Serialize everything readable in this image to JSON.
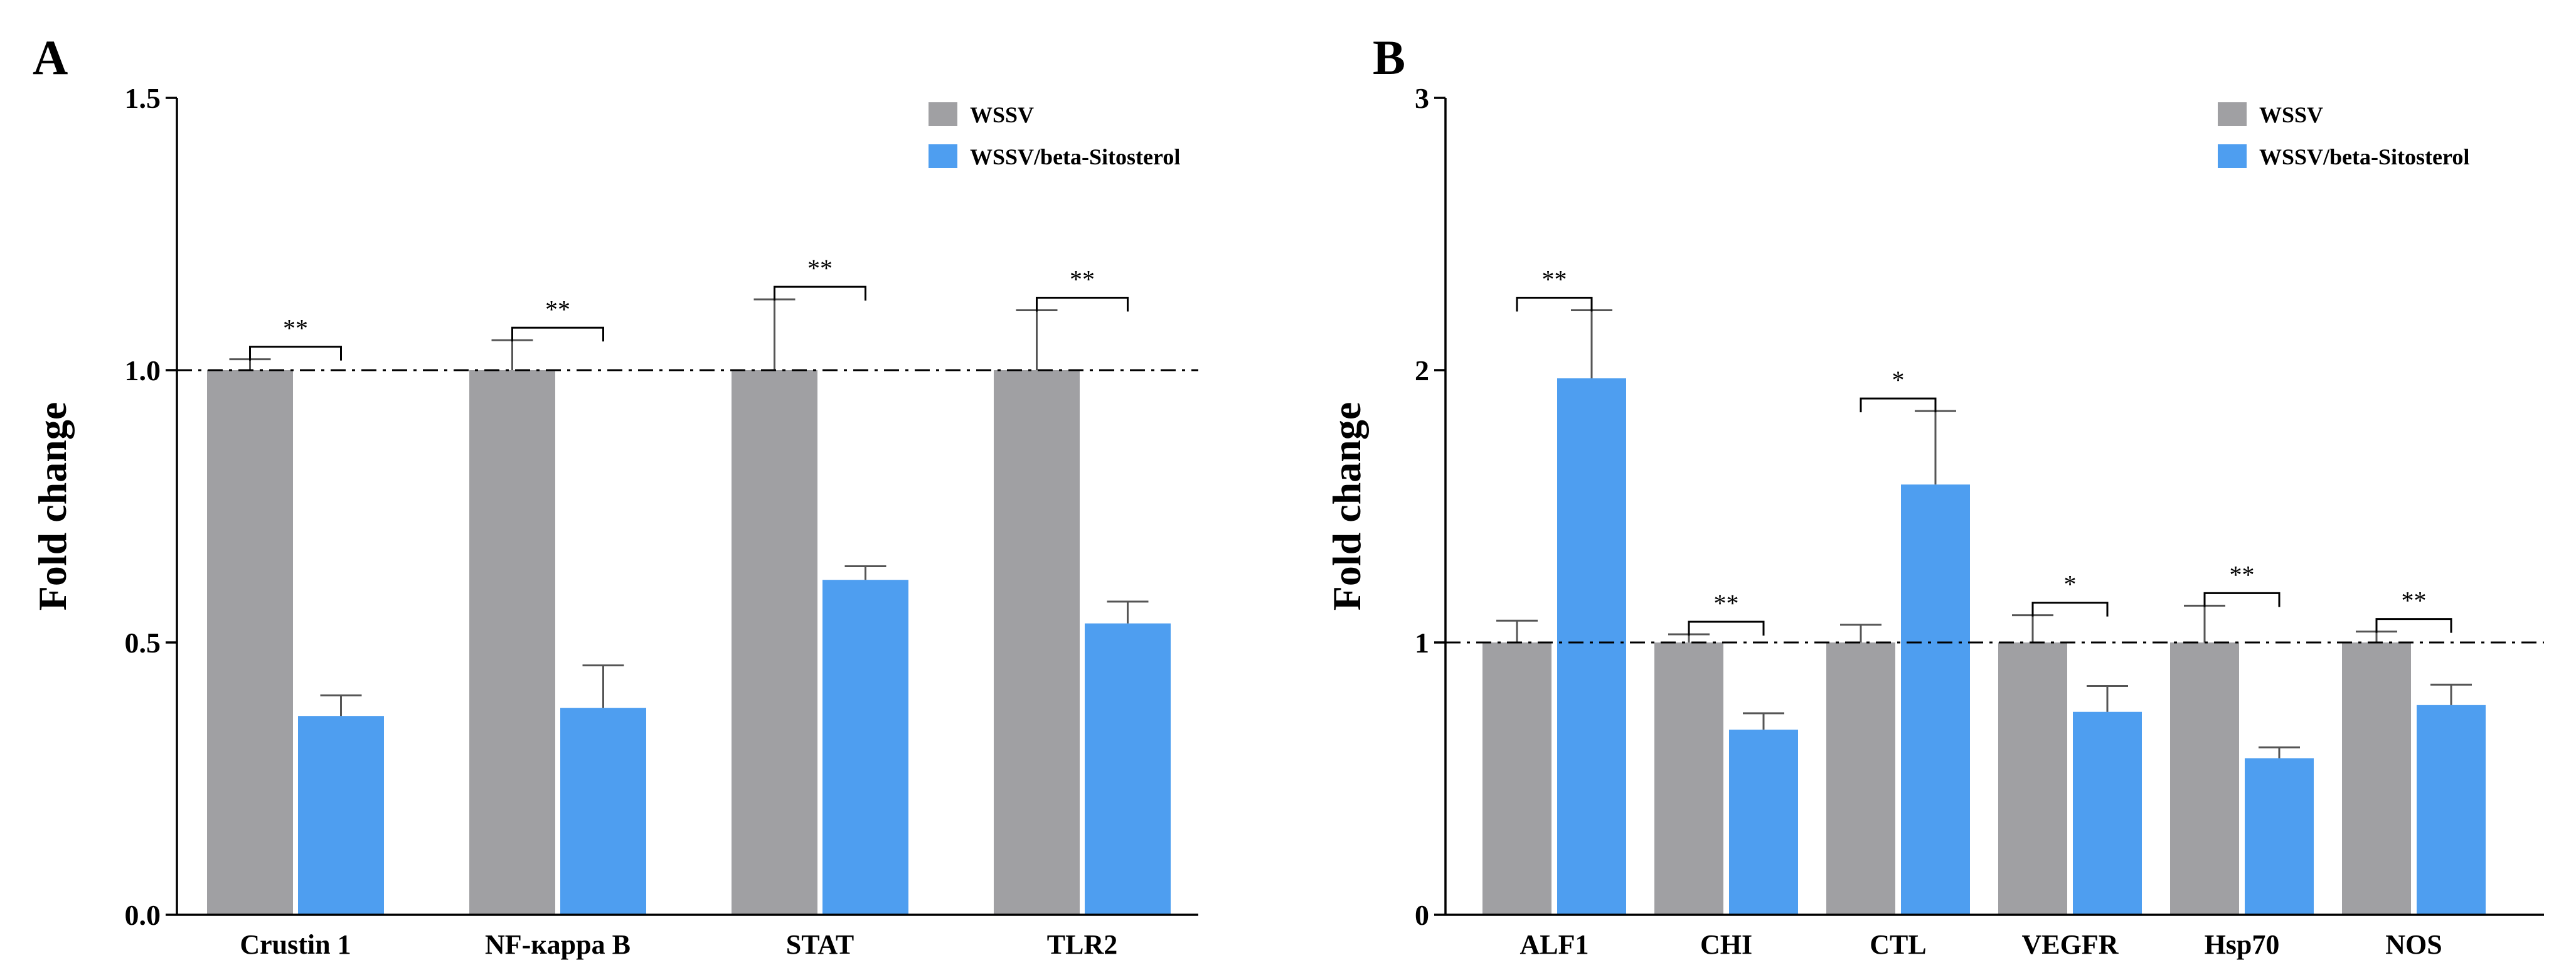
{
  "colors": {
    "wssv": "#a0a0a3",
    "treated": "#4e9ef0",
    "axis": "#000000",
    "error": "#555555",
    "reference": "#000000"
  },
  "chart_data": [
    {
      "panel": "A",
      "type": "bar",
      "ylabel": "Fold change",
      "xlabel": "",
      "ylim": [
        0,
        1.5
      ],
      "yticks": [
        0,
        0.5,
        1,
        1.5
      ],
      "ytick_labels": [
        "0.0",
        "0.5",
        "1.0",
        "1.5"
      ],
      "reference_line": 1,
      "legend_position": "top-right",
      "categories": [
        "Crustin 1",
        "NF-кappa B",
        "STAT",
        "TLR2"
      ],
      "series": [
        {
          "name": "WSSV",
          "color_key": "wssv",
          "values": [
            1.0,
            1.0,
            1.0,
            1.0
          ],
          "errors": [
            0.02,
            0.055,
            0.13,
            0.11
          ]
        },
        {
          "name": "WSSV/beta-Sitosterol",
          "color_key": "treated",
          "values": [
            0.365,
            0.38,
            0.615,
            0.535
          ],
          "errors": [
            0.038,
            0.078,
            0.025,
            0.04
          ]
        }
      ],
      "significance": [
        "**",
        "**",
        "**",
        "**"
      ]
    },
    {
      "panel": "B",
      "type": "bar",
      "ylabel": "Fold change",
      "xlabel": "",
      "ylim": [
        0,
        3
      ],
      "yticks": [
        0,
        1,
        2,
        3
      ],
      "ytick_labels": [
        "0",
        "1",
        "2",
        "3"
      ],
      "reference_line": 1,
      "legend_position": "top-right",
      "categories": [
        "ALF1",
        "CHI",
        "CTL",
        "VEGFR",
        "Hsp70",
        "NOS"
      ],
      "series": [
        {
          "name": "WSSV",
          "color_key": "wssv",
          "values": [
            1.0,
            1.0,
            1.0,
            1.0,
            1.0,
            1.0
          ],
          "errors": [
            0.08,
            0.03,
            0.065,
            0.1,
            0.135,
            0.04
          ]
        },
        {
          "name": "WSSV/beta-Sitosterol",
          "color_key": "treated",
          "values": [
            1.97,
            0.68,
            1.58,
            0.745,
            0.575,
            0.77
          ],
          "errors": [
            0.25,
            0.06,
            0.27,
            0.095,
            0.04,
            0.075
          ]
        }
      ],
      "significance": [
        "**",
        "**",
        "*",
        "*",
        "**",
        "**"
      ]
    }
  ]
}
